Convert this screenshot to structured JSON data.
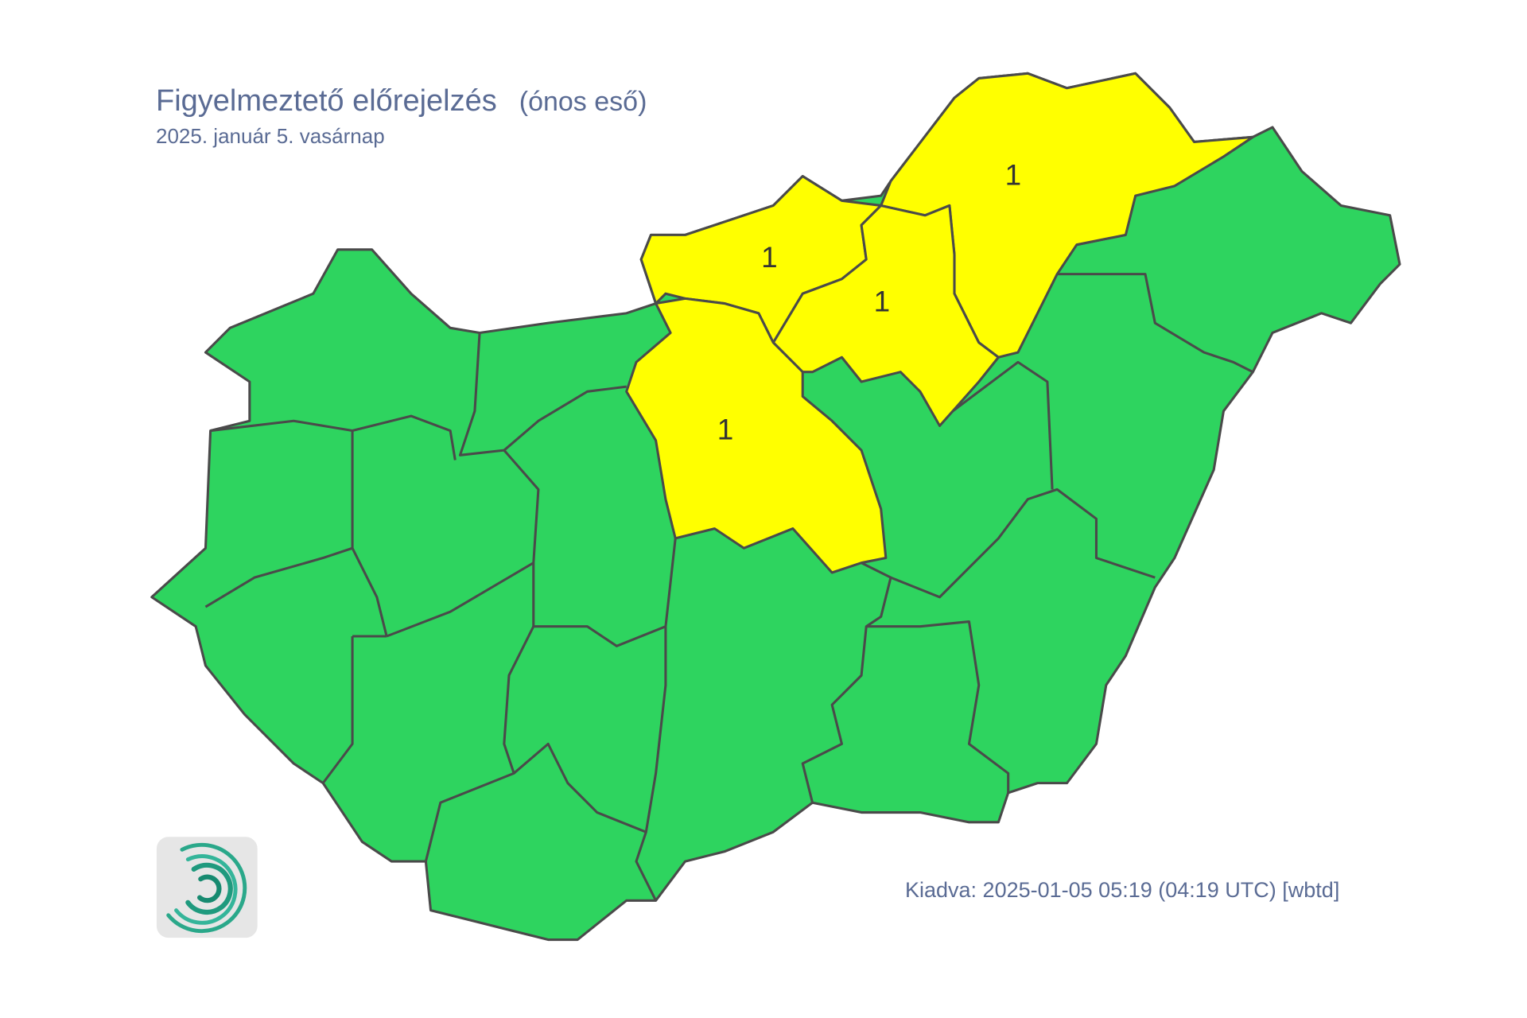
{
  "header": {
    "title": "Figyelmeztető előrejelzés",
    "phenomenon": "(ónos eső)",
    "date": "2025. január 5. vasárnap"
  },
  "footer": {
    "issued": "Kiadva: 2025-01-05 05:19 (04:19 UTC) [wbtd]"
  },
  "colors": {
    "level0": "#2ed45f",
    "level1": "#ffff00",
    "border": "#4a4a4a",
    "text": "#5a6b94"
  },
  "warnings": {
    "nograd": "1",
    "pest": "1",
    "heves": "1",
    "borsod": "1"
  },
  "logo": {
    "icon": "met-service-swirl-logo"
  }
}
